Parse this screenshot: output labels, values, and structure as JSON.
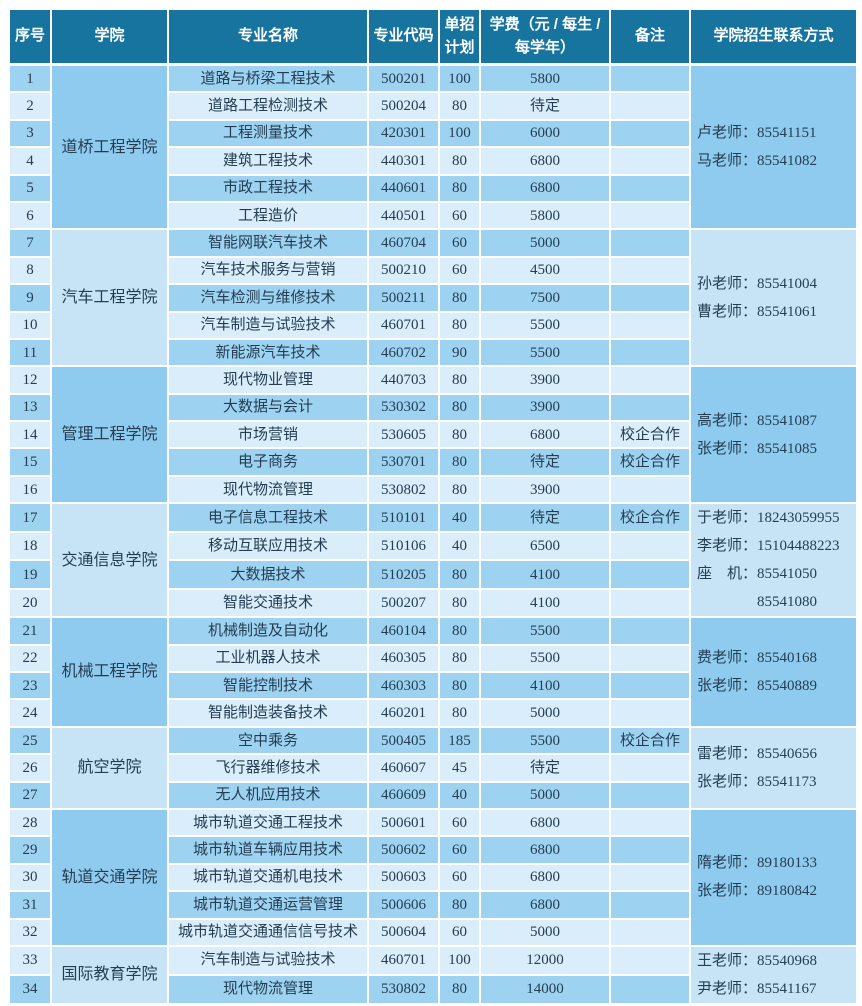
{
  "colors": {
    "header_bg": "#17749F",
    "row_medium": "#9DD3F1",
    "row_light": "#D9EDFA",
    "group_medium": "#8FCBEE",
    "group_light": "#C7E4F6",
    "grid": "#FFFFFF",
    "text": "#243D52",
    "header_text": "#FFFFFF"
  },
  "header": {
    "columns": [
      "序号",
      "学院",
      "专业名称",
      "专业代码",
      "单招计划",
      "学费（元 / 每生 / 每学年）",
      "备注",
      "学院招生联系方式"
    ]
  },
  "groups": [
    {
      "college": "道桥工程学院",
      "shade": "m",
      "contact_lines": [
        "卢老师：85541151",
        "马老师：85541082"
      ],
      "rows": [
        {
          "no": "1",
          "major": "道路与桥梁工程技术",
          "code": "500201",
          "plan": "100",
          "fee": "5800",
          "note": "",
          "shade": "m"
        },
        {
          "no": "2",
          "major": "道路工程检测技术",
          "code": "500204",
          "plan": "80",
          "fee": "待定",
          "note": "",
          "shade": "l"
        },
        {
          "no": "3",
          "major": "工程测量技术",
          "code": "420301",
          "plan": "100",
          "fee": "6000",
          "note": "",
          "shade": "m"
        },
        {
          "no": "4",
          "major": "建筑工程技术",
          "code": "440301",
          "plan": "80",
          "fee": "6800",
          "note": "",
          "shade": "l"
        },
        {
          "no": "5",
          "major": "市政工程技术",
          "code": "440601",
          "plan": "80",
          "fee": "6800",
          "note": "",
          "shade": "m"
        },
        {
          "no": "6",
          "major": "工程造价",
          "code": "440501",
          "plan": "60",
          "fee": "5800",
          "note": "",
          "shade": "l"
        }
      ]
    },
    {
      "college": "汽车工程学院",
      "shade": "l",
      "contact_lines": [
        "孙老师：85541004",
        "曹老师：85541061"
      ],
      "rows": [
        {
          "no": "7",
          "major": "智能网联汽车技术",
          "code": "460704",
          "plan": "60",
          "fee": "5000",
          "note": "",
          "shade": "m"
        },
        {
          "no": "8",
          "major": "汽车技术服务与营销",
          "code": "500210",
          "plan": "60",
          "fee": "4500",
          "note": "",
          "shade": "l"
        },
        {
          "no": "9",
          "major": "汽车检测与维修技术",
          "code": "500211",
          "plan": "80",
          "fee": "7500",
          "note": "",
          "shade": "m"
        },
        {
          "no": "10",
          "major": "汽车制造与试验技术",
          "code": "460701",
          "plan": "80",
          "fee": "5500",
          "note": "",
          "shade": "l"
        },
        {
          "no": "11",
          "major": "新能源汽车技术",
          "code": "460702",
          "plan": "90",
          "fee": "5500",
          "note": "",
          "shade": "m"
        }
      ]
    },
    {
      "college": "管理工程学院",
      "shade": "m",
      "contact_lines": [
        "高老师：85541087",
        "张老师：85541085"
      ],
      "rows": [
        {
          "no": "12",
          "major": "现代物业管理",
          "code": "440703",
          "plan": "80",
          "fee": "3900",
          "note": "",
          "shade": "l"
        },
        {
          "no": "13",
          "major": "大数据与会计",
          "code": "530302",
          "plan": "80",
          "fee": "3900",
          "note": "",
          "shade": "m"
        },
        {
          "no": "14",
          "major": "市场营销",
          "code": "530605",
          "plan": "80",
          "fee": "6800",
          "note": "校企合作",
          "shade": "l"
        },
        {
          "no": "15",
          "major": "电子商务",
          "code": "530701",
          "plan": "80",
          "fee": "待定",
          "note": "校企合作",
          "shade": "m"
        },
        {
          "no": "16",
          "major": "现代物流管理",
          "code": "530802",
          "plan": "80",
          "fee": "3900",
          "note": "",
          "shade": "l"
        }
      ]
    },
    {
      "college": "交通信息学院",
      "shade": "l",
      "contact_lines": [
        "于老师：18243059955",
        "李老师：15104488223",
        "座　机：85541050",
        "　　　　85541080"
      ],
      "rows": [
        {
          "no": "17",
          "major": "电子信息工程技术",
          "code": "510101",
          "plan": "40",
          "fee": "待定",
          "note": "校企合作",
          "shade": "m"
        },
        {
          "no": "18",
          "major": "移动互联应用技术",
          "code": "510106",
          "plan": "40",
          "fee": "6500",
          "note": "",
          "shade": "l"
        },
        {
          "no": "19",
          "major": "大数据技术",
          "code": "510205",
          "plan": "80",
          "fee": "4100",
          "note": "",
          "shade": "m"
        },
        {
          "no": "20",
          "major": "智能交通技术",
          "code": "500207",
          "plan": "80",
          "fee": "4100",
          "note": "",
          "shade": "l"
        }
      ]
    },
    {
      "college": "机械工程学院",
      "shade": "m",
      "contact_lines": [
        "费老师：85540168",
        "张老师：85540889"
      ],
      "rows": [
        {
          "no": "21",
          "major": "机械制造及自动化",
          "code": "460104",
          "plan": "80",
          "fee": "5500",
          "note": "",
          "shade": "m"
        },
        {
          "no": "22",
          "major": "工业机器人技术",
          "code": "460305",
          "plan": "80",
          "fee": "5500",
          "note": "",
          "shade": "l"
        },
        {
          "no": "23",
          "major": "智能控制技术",
          "code": "460303",
          "plan": "80",
          "fee": "4100",
          "note": "",
          "shade": "m"
        },
        {
          "no": "24",
          "major": "智能制造装备技术",
          "code": "460201",
          "plan": "80",
          "fee": "5000",
          "note": "",
          "shade": "l"
        }
      ]
    },
    {
      "college": "航空学院",
      "shade": "l",
      "contact_lines": [
        "雷老师：85540656",
        "张老师：85541173"
      ],
      "rows": [
        {
          "no": "25",
          "major": "空中乘务",
          "code": "500405",
          "plan": "185",
          "fee": "5500",
          "note": "校企合作",
          "shade": "m"
        },
        {
          "no": "26",
          "major": "飞行器维修技术",
          "code": "460607",
          "plan": "45",
          "fee": "待定",
          "note": "",
          "shade": "l"
        },
        {
          "no": "27",
          "major": "无人机应用技术",
          "code": "460609",
          "plan": "40",
          "fee": "5000",
          "note": "",
          "shade": "m"
        }
      ]
    },
    {
      "college": "轨道交通学院",
      "shade": "m",
      "contact_lines": [
        "隋老师：89180133",
        "张老师：89180842"
      ],
      "rows": [
        {
          "no": "28",
          "major": "城市轨道交通工程技术",
          "code": "500601",
          "plan": "60",
          "fee": "6800",
          "note": "",
          "shade": "l"
        },
        {
          "no": "29",
          "major": "城市轨道车辆应用技术",
          "code": "500602",
          "plan": "60",
          "fee": "6800",
          "note": "",
          "shade": "m"
        },
        {
          "no": "30",
          "major": "城市轨道交通机电技术",
          "code": "500603",
          "plan": "60",
          "fee": "6800",
          "note": "",
          "shade": "l"
        },
        {
          "no": "31",
          "major": "城市轨道交通运营管理",
          "code": "500606",
          "plan": "80",
          "fee": "6800",
          "note": "",
          "shade": "m"
        },
        {
          "no": "32",
          "major": "城市轨道交通通信信号技术",
          "code": "500604",
          "plan": "60",
          "fee": "5000",
          "note": "",
          "shade": "l"
        }
      ]
    },
    {
      "college": "国际教育学院",
      "shade": "l",
      "contact_lines": [
        "王老师：85540968",
        "尹老师：85541167"
      ],
      "rows": [
        {
          "no": "33",
          "major": "汽车制造与试验技术",
          "code": "460701",
          "plan": "100",
          "fee": "12000",
          "note": "",
          "shade": "l"
        },
        {
          "no": "34",
          "major": "现代物流管理",
          "code": "530802",
          "plan": "80",
          "fee": "14000",
          "note": "",
          "shade": "m"
        }
      ]
    }
  ]
}
